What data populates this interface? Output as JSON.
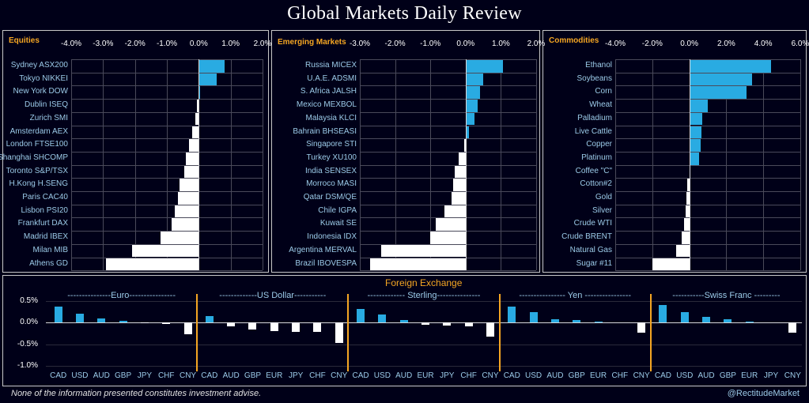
{
  "title": "Global Markets Daily Review",
  "colors": {
    "positive": "#29abe2",
    "negative": "#ffffff",
    "accent": "#f5a623",
    "label": "#9ccbe8"
  },
  "chart_data": [
    {
      "id": "equities",
      "type": "bar",
      "orientation": "horizontal",
      "title": "Equities",
      "xlim": [
        -4.0,
        2.0
      ],
      "ticks": [
        "-4.0%",
        "-3.0%",
        "-2.0%",
        "-1.0%",
        "0.0%",
        "1.0%",
        "2.0%"
      ],
      "tick_values": [
        -4,
        -3,
        -2,
        -1,
        0,
        1,
        2
      ],
      "categories": [
        "Sydney ASX200",
        "Tokyo NIKKEI",
        "New York DOW",
        "Dublin ISEQ",
        "Zurich SMI",
        "Amsterdam AEX",
        "London FTSE100",
        "Shanghai SHCOMP",
        "Toronto S&P/TSX",
        "H.Kong H.SENG",
        "Paris CAC40",
        "Lisbon PSI20",
        "Frankfurt DAX",
        "Madrid IBEX",
        "Milan MIB",
        "Athens GD"
      ],
      "values": [
        0.8,
        0.55,
        0.05,
        -0.05,
        -0.1,
        -0.2,
        -0.3,
        -0.4,
        -0.45,
        -0.6,
        -0.65,
        -0.75,
        -0.85,
        -1.2,
        -2.1,
        -2.9
      ]
    },
    {
      "id": "emerging",
      "type": "bar",
      "orientation": "horizontal",
      "title": "Emerging Markets",
      "xlim": [
        -3.0,
        2.0
      ],
      "ticks": [
        "-3.0%",
        "-2.0%",
        "-1.0%",
        "0.0%",
        "1.0%",
        "2.0%"
      ],
      "tick_values": [
        -3,
        -2,
        -1,
        0,
        1,
        2
      ],
      "categories": [
        "Russia MICEX",
        "U.A.E. ADSMI",
        "S. Africa JALSH",
        "Mexico MEXBOL",
        "Malaysia KLCI",
        "Bahrain BHSEASI",
        "Singapore STI",
        "Turkey XU100",
        "India SENSEX",
        "Morroco MASI",
        "Qatar DSM/QE",
        "Chile IGPA",
        "Kuwait SE",
        "Indonesia IDX",
        "Argentina MERVAL",
        "Brazil IBOVESPA"
      ],
      "values": [
        1.05,
        0.5,
        0.4,
        0.35,
        0.25,
        0.1,
        -0.05,
        -0.2,
        -0.3,
        -0.35,
        -0.4,
        -0.6,
        -0.85,
        -1.0,
        -2.4,
        -2.7
      ]
    },
    {
      "id": "commodities",
      "type": "bar",
      "orientation": "horizontal",
      "title": "Commodities",
      "xlim": [
        -4.0,
        6.0
      ],
      "ticks": [
        "-4.0%",
        "-2.0%",
        "0.0%",
        "2.0%",
        "4.0%",
        "6.0%"
      ],
      "tick_values": [
        -4,
        -2,
        0,
        2,
        4,
        6
      ],
      "categories": [
        "Ethanol",
        "Soybeans",
        "Corn",
        "Wheat",
        "Palladium",
        "Live Cattle",
        "Copper",
        "Platinum",
        "Coffee \"C\"",
        "Cotton#2",
        "Gold",
        "Silver",
        "Crude WTI",
        "Crude BRENT",
        "Natural Gas",
        "Sugar #11"
      ],
      "values": [
        4.4,
        3.4,
        3.1,
        1.0,
        0.7,
        0.65,
        0.6,
        0.55,
        0.05,
        -0.1,
        -0.15,
        -0.2,
        -0.3,
        -0.4,
        -0.7,
        -2.0
      ]
    },
    {
      "id": "fx",
      "type": "bar",
      "orientation": "vertical",
      "title": "Foreign Exchange",
      "ylim": [
        -1.0,
        0.5
      ],
      "yticks": [
        "0.5%",
        "0.0%",
        "-0.5%",
        "-1.0%"
      ],
      "ytick_values": [
        0.5,
        0.0,
        -0.5,
        -1.0
      ],
      "groups": [
        {
          "label": "---------------Euro----------------",
          "categories": [
            "CAD",
            "USD",
            "AUD",
            "GBP",
            "JPY",
            "CHF",
            "CNY"
          ],
          "values": [
            0.37,
            0.2,
            0.1,
            0.05,
            -0.02,
            -0.03,
            -0.27
          ]
        },
        {
          "label": "-------------US  Dollar-----------",
          "categories": [
            "CAD",
            "AUD",
            "GBP",
            "EUR",
            "JPY",
            "CHF",
            "CNY"
          ],
          "values": [
            0.15,
            -0.08,
            -0.15,
            -0.2,
            -0.22,
            -0.22,
            -0.47
          ]
        },
        {
          "label": "-------------  Sterling---------------",
          "categories": [
            "CAD",
            "USD",
            "AUD",
            "EUR",
            "JPY",
            "CHF",
            "CNY"
          ],
          "values": [
            0.32,
            0.18,
            0.07,
            -0.04,
            -0.06,
            -0.08,
            -0.33
          ]
        },
        {
          "label": "----------------  Yen  ----------------",
          "categories": [
            "CAD",
            "USD",
            "AUD",
            "GBP",
            "EUR",
            "CHF",
            "CNY"
          ],
          "values": [
            0.38,
            0.25,
            0.08,
            0.06,
            0.03,
            0.0,
            -0.23
          ]
        },
        {
          "label": "-----------Swiss  Franc  ---------",
          "categories": [
            "CAD",
            "USD",
            "AUD",
            "GBP",
            "EUR",
            "JPY",
            "CNY"
          ],
          "values": [
            0.4,
            0.25,
            0.13,
            0.08,
            0.03,
            0.0,
            -0.23
          ]
        }
      ]
    }
  ],
  "footer": {
    "disclaimer": "None of the information presented constitutes investment advise.",
    "handle": "@RectitudeMarket"
  }
}
